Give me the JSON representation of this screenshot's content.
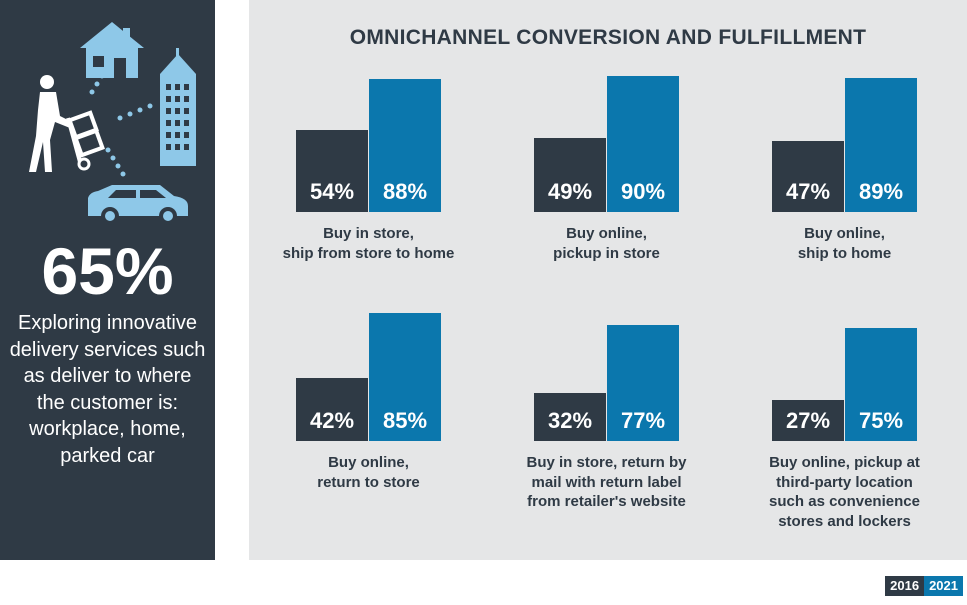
{
  "sidebar": {
    "stat_value": "65%",
    "stat_caption": "Exploring innovative delivery services such as deliver to where the customer is: workplace, home, parked car",
    "illustration_icons": [
      "house-icon",
      "building-icon",
      "delivery-person-icon",
      "car-icon"
    ]
  },
  "chart_data": {
    "type": "bar",
    "title": "OMNICHANNEL CONVERSION AND FULFILLMENT",
    "series": [
      {
        "name": "2016",
        "color": "#2f3a45"
      },
      {
        "name": "2021",
        "color": "#0b77ad"
      }
    ],
    "groups": [
      {
        "label": "Buy in store,\nship from store to home",
        "values": [
          54,
          88
        ],
        "value_labels": [
          "54%",
          "88%"
        ]
      },
      {
        "label": "Buy online,\npickup in store",
        "values": [
          49,
          90
        ],
        "value_labels": [
          "49%",
          "90%"
        ]
      },
      {
        "label": "Buy online,\nship to home",
        "values": [
          47,
          89
        ],
        "value_labels": [
          "47%",
          "89%"
        ]
      },
      {
        "label": "Buy online,\nreturn to store",
        "values": [
          42,
          85
        ],
        "value_labels": [
          "42%",
          "85%"
        ]
      },
      {
        "label": "Buy in store, return by\nmail with return label\nfrom retailer's website",
        "values": [
          32,
          77
        ],
        "value_labels": [
          "32%",
          "77%"
        ]
      },
      {
        "label": "Buy online, pickup at\nthird-party location\nsuch as convenience\nstores and lockers",
        "values": [
          27,
          75
        ],
        "value_labels": [
          "27%",
          "75%"
        ]
      }
    ],
    "legend_placement": "bottom-right",
    "grid": false
  }
}
